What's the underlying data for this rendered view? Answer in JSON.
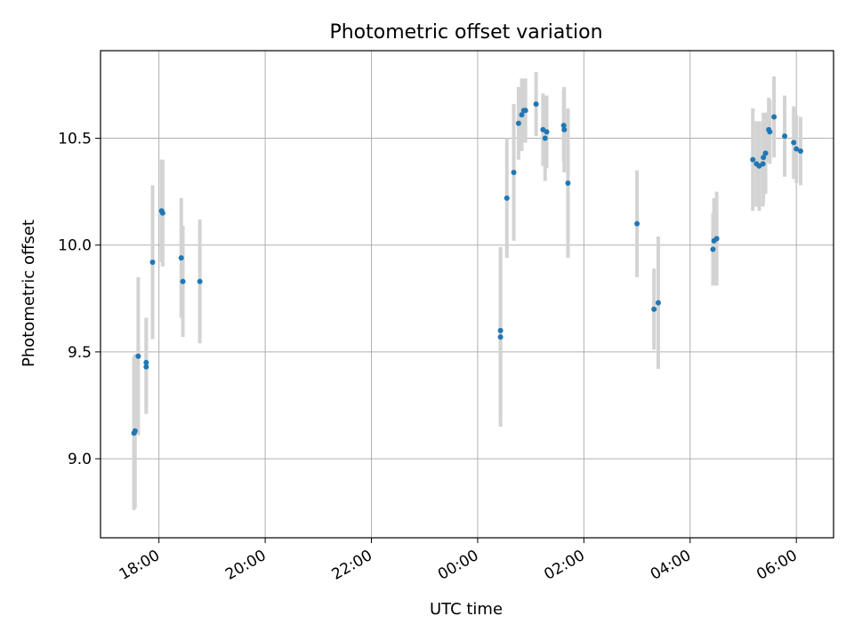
{
  "chart_data": {
    "type": "scatter",
    "title": "Photometric offset variation",
    "xlabel": "UTC time",
    "ylabel": "Photometric offset",
    "x_unit": "hours since 00:00 UTC",
    "xlim": [
      -7.1,
      6.7
    ],
    "ylim": [
      8.63,
      10.91
    ],
    "x_ticks": [
      {
        "value": -6,
        "label": "18:00"
      },
      {
        "value": -4,
        "label": "20:00"
      },
      {
        "value": -2,
        "label": "22:00"
      },
      {
        "value": 0,
        "label": "00:00"
      },
      {
        "value": 2,
        "label": "02:00"
      },
      {
        "value": 4,
        "label": "04:00"
      },
      {
        "value": 6,
        "label": "06:00"
      }
    ],
    "y_ticks": [
      {
        "value": 9.0,
        "label": "9.0"
      },
      {
        "value": 9.5,
        "label": "9.5"
      },
      {
        "value": 10.0,
        "label": "10.0"
      },
      {
        "value": 10.5,
        "label": "10.5"
      }
    ],
    "grid": true,
    "marker_color": "#1f77b4",
    "errorbar_color": "#d3d3d3",
    "points": [
      {
        "x": -6.47,
        "y": 9.12,
        "err": 0.36
      },
      {
        "x": -6.45,
        "y": 9.13,
        "err": 0.36
      },
      {
        "x": -6.39,
        "y": 9.48,
        "err": 0.37
      },
      {
        "x": -6.24,
        "y": 9.45,
        "err": 0.21
      },
      {
        "x": -6.24,
        "y": 9.43,
        "err": 0.22
      },
      {
        "x": -6.12,
        "y": 9.92,
        "err": 0.36
      },
      {
        "x": -5.95,
        "y": 10.16,
        "err": 0.24
      },
      {
        "x": -5.93,
        "y": 10.15,
        "err": 0.25
      },
      {
        "x": -5.58,
        "y": 9.94,
        "err": 0.28
      },
      {
        "x": -5.55,
        "y": 9.83,
        "err": 0.26
      },
      {
        "x": -5.23,
        "y": 9.83,
        "err": 0.29
      },
      {
        "x": 0.43,
        "y": 9.6,
        "err": 0.39
      },
      {
        "x": 0.43,
        "y": 9.57,
        "err": 0.42
      },
      {
        "x": 0.55,
        "y": 10.22,
        "err": 0.28
      },
      {
        "x": 0.68,
        "y": 10.34,
        "err": 0.32
      },
      {
        "x": 0.77,
        "y": 10.57,
        "err": 0.17
      },
      {
        "x": 0.83,
        "y": 10.61,
        "err": 0.17
      },
      {
        "x": 0.87,
        "y": 10.63,
        "err": 0.15
      },
      {
        "x": 0.9,
        "y": 10.63,
        "err": 0.15
      },
      {
        "x": 1.1,
        "y": 10.66,
        "err": 0.15
      },
      {
        "x": 1.23,
        "y": 10.54,
        "err": 0.17
      },
      {
        "x": 1.27,
        "y": 10.5,
        "err": 0.2
      },
      {
        "x": 1.3,
        "y": 10.53,
        "err": 0.17
      },
      {
        "x": 1.62,
        "y": 10.56,
        "err": 0.17
      },
      {
        "x": 1.63,
        "y": 10.54,
        "err": 0.2
      },
      {
        "x": 1.7,
        "y": 10.29,
        "err": 0.35
      },
      {
        "x": 3.0,
        "y": 10.1,
        "err": 0.25
      },
      {
        "x": 3.32,
        "y": 9.7,
        "err": 0.19
      },
      {
        "x": 3.4,
        "y": 9.73,
        "err": 0.31
      },
      {
        "x": 4.43,
        "y": 9.98,
        "err": 0.17
      },
      {
        "x": 4.45,
        "y": 10.02,
        "err": 0.2
      },
      {
        "x": 4.5,
        "y": 10.03,
        "err": 0.22
      },
      {
        "x": 5.18,
        "y": 10.4,
        "err": 0.24
      },
      {
        "x": 5.25,
        "y": 10.38,
        "err": 0.2
      },
      {
        "x": 5.3,
        "y": 10.37,
        "err": 0.21
      },
      {
        "x": 5.37,
        "y": 10.38,
        "err": 0.2
      },
      {
        "x": 5.38,
        "y": 10.41,
        "err": 0.21
      },
      {
        "x": 5.42,
        "y": 10.43,
        "err": 0.19
      },
      {
        "x": 5.48,
        "y": 10.54,
        "err": 0.15
      },
      {
        "x": 5.5,
        "y": 10.53,
        "err": 0.15
      },
      {
        "x": 5.58,
        "y": 10.6,
        "err": 0.19
      },
      {
        "x": 5.78,
        "y": 10.51,
        "err": 0.19
      },
      {
        "x": 5.95,
        "y": 10.48,
        "err": 0.17
      },
      {
        "x": 6.0,
        "y": 10.45,
        "err": 0.16
      },
      {
        "x": 6.08,
        "y": 10.44,
        "err": 0.16
      }
    ]
  }
}
